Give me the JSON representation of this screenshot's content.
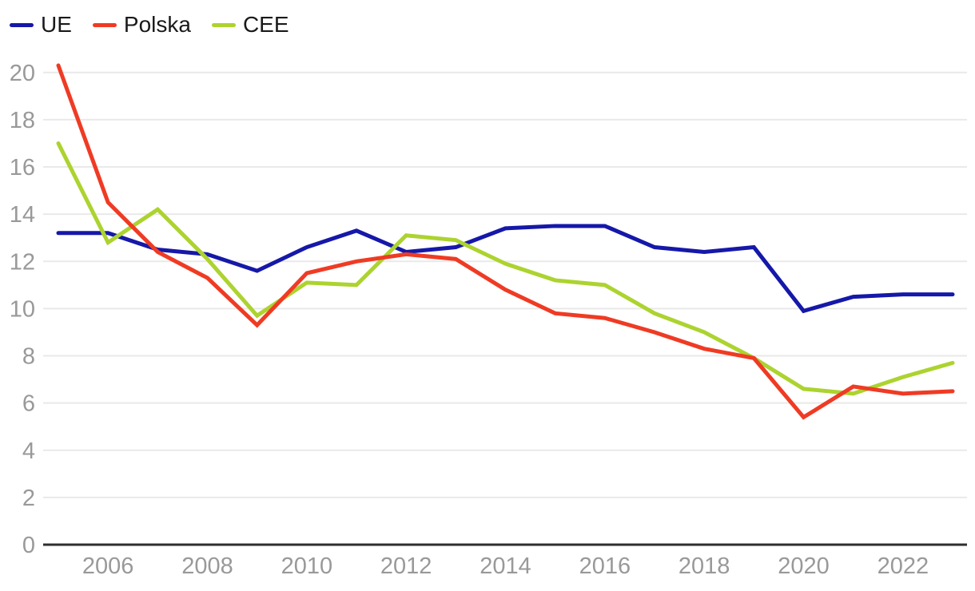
{
  "chart_data": {
    "type": "line",
    "title": "",
    "xlabel": "",
    "ylabel": "",
    "x": [
      2005,
      2006,
      2007,
      2008,
      2009,
      2010,
      2011,
      2012,
      2013,
      2014,
      2015,
      2016,
      2017,
      2018,
      2019,
      2020,
      2021,
      2022,
      2023
    ],
    "series": [
      {
        "name": "UE",
        "color": "#1518A8",
        "values": [
          13.2,
          13.2,
          12.5,
          12.3,
          11.6,
          12.6,
          13.3,
          12.4,
          12.6,
          13.4,
          13.5,
          13.5,
          12.6,
          12.4,
          12.6,
          9.9,
          10.5,
          10.6,
          10.6
        ]
      },
      {
        "name": "Polska",
        "color": "#EF3B24",
        "values": [
          20.3,
          14.5,
          12.4,
          11.3,
          9.3,
          11.5,
          12.0,
          12.3,
          12.1,
          10.8,
          9.8,
          9.6,
          9.0,
          8.3,
          7.9,
          5.4,
          6.7,
          6.4,
          6.5
        ]
      },
      {
        "name": "CEE",
        "color": "#ACD32F",
        "values": [
          17.0,
          12.8,
          14.2,
          12.1,
          9.7,
          11.1,
          11.0,
          13.1,
          12.9,
          11.9,
          11.2,
          11.0,
          9.8,
          9.0,
          7.9,
          6.6,
          6.4,
          7.1,
          7.7
        ]
      }
    ],
    "ylim": [
      0,
      20
    ],
    "ytick_step": 2,
    "yticks": [
      0,
      2,
      4,
      6,
      8,
      10,
      12,
      14,
      16,
      18,
      20
    ],
    "xticks": [
      2006,
      2008,
      2010,
      2012,
      2014,
      2016,
      2018,
      2020,
      2022
    ],
    "grid": true,
    "legend_position": "top-left",
    "draw_order": [
      0,
      2,
      1
    ]
  },
  "styles": {
    "grid_color": "#E9E9E9",
    "axis_color": "#2E2E2E",
    "tick_label_color": "#999999",
    "legend_text_color": "#1A1A1A",
    "background": "#FFFFFF"
  }
}
